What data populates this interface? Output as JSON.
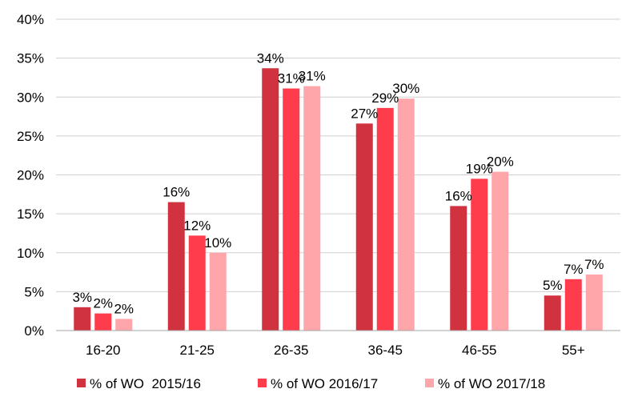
{
  "chart_data": {
    "type": "bar",
    "categories": [
      "16-20",
      "21-25",
      "26-35",
      "36-45",
      "46-55",
      "55+"
    ],
    "series": [
      {
        "name": "% of WO  2015/16",
        "color": "#d0323f",
        "values": [
          3,
          16.5,
          33.7,
          26.6,
          16,
          4.5
        ],
        "labels": [
          "3%",
          "16%",
          "34%",
          "27%",
          "16%",
          "5%"
        ]
      },
      {
        "name": "% of WO 2016/17",
        "color": "#ff3c4c",
        "values": [
          2.2,
          12.2,
          31.1,
          28.6,
          19.5,
          6.6
        ],
        "labels": [
          "2%",
          "12%",
          "31%",
          "29%",
          "19%",
          "7%"
        ]
      },
      {
        "name": "% of WO 2017/18",
        "color": "#ffa6aa",
        "values": [
          1.5,
          10,
          31.4,
          29.8,
          20.4,
          7.2
        ],
        "labels": [
          "2%",
          "10%",
          "31%",
          "30%",
          "20%",
          "7%"
        ]
      }
    ],
    "y_ticks": [
      "0%",
      "5%",
      "10%",
      "15%",
      "20%",
      "25%",
      "30%",
      "35%",
      "40%"
    ],
    "ylim": [
      0,
      40
    ],
    "grid": true,
    "legend_position": "bottom"
  }
}
